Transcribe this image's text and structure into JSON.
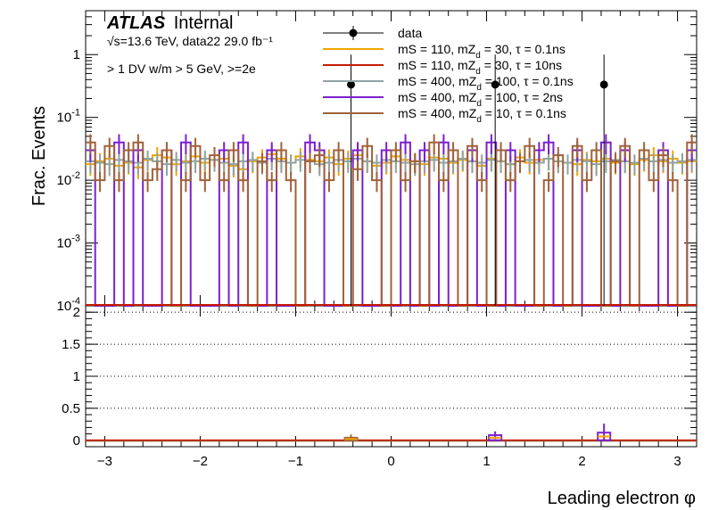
{
  "chart_data": [
    {
      "type": "step-histogram",
      "panel": "main",
      "title": "",
      "xlabel": "Leading electron φ",
      "ylabel": "Frac. Events",
      "ylog": true,
      "xlim": [
        -3.2,
        3.2
      ],
      "ylim": [
        0.0001,
        5
      ],
      "y_tick_values": [
        0.0001,
        0.001,
        0.01,
        0.1,
        1
      ],
      "y_tick_labels": [
        "10^-4",
        "10^-3",
        "10^-2",
        "10^-1",
        "1"
      ],
      "atlas_label": {
        "bold": "ATLAS",
        "suffix": "Internal"
      },
      "info_lines": [
        "√s=13.6 TeV, data22 29.0 fb⁻¹",
        "> 1 DV w/m > 5 GeV, >=2e"
      ],
      "legend_position": "top-right",
      "series": [
        {
          "name": "data",
          "color": "#000000",
          "style": "points",
          "points": [
            {
              "x": -0.42,
              "y": 0.333,
              "lo": 0.0001,
              "hi": 1.0
            },
            {
              "x": 1.09,
              "y": 0.333,
              "lo": 0.0001,
              "hi": 1.0
            },
            {
              "x": 2.23,
              "y": 0.333,
              "lo": 0.0001,
              "hi": 1.0
            }
          ]
        },
        {
          "name": "mS = 110, mZ_d = 30, τ = 0.1ns",
          "color": "#f0a500",
          "values": [
            0.018,
            0.02,
            0.022,
            0.017,
            0.019,
            0.016,
            0.021,
            0.025,
            0.023,
            0.018,
            0.02,
            0.024,
            0.019,
            0.021,
            0.022,
            0.017,
            0.015,
            0.02,
            0.023,
            0.026,
            0.022,
            0.019,
            0.024,
            0.021,
            0.02,
            0.023,
            0.018,
            0.022,
            0.025,
            0.02,
            0.017,
            0.019,
            0.024,
            0.021,
            0.02,
            0.018,
            0.023,
            0.022,
            0.019,
            0.021,
            0.02,
            0.017,
            0.022,
            0.02,
            0.018,
            0.023,
            0.019,
            0.021,
            0.022,
            0.02,
            0.019,
            0.018,
            0.021,
            0.02,
            0.022,
            0.019,
            0.02,
            0.018,
            0.021,
            0.025,
            0.02,
            0.022,
            0.019,
            0.02
          ]
        },
        {
          "name": "mS = 110, mZ_d = 30, τ = 10ns",
          "color": "#c41a00",
          "values": []
        },
        {
          "name": "mS = 400, mZ_d = 100, τ = 0.1ns",
          "color": "#8fa3a3",
          "values": [
            0.02,
            0.019,
            0.018,
            0.021,
            0.02,
            0.019,
            0.022,
            0.02,
            0.018,
            0.021,
            0.019,
            0.02,
            0.022,
            0.021,
            0.019,
            0.018,
            0.02,
            0.021,
            0.019,
            0.022,
            0.02,
            0.019,
            0.021,
            0.02,
            0.018,
            0.019,
            0.021,
            0.02,
            0.022,
            0.02,
            0.019,
            0.021,
            0.02,
            0.019,
            0.018,
            0.02,
            0.021,
            0.019,
            0.02,
            0.022,
            0.02,
            0.019,
            0.021,
            0.02,
            0.018,
            0.02,
            0.021,
            0.019,
            0.022,
            0.02,
            0.019,
            0.021,
            0.02,
            0.018,
            0.02,
            0.021,
            0.02,
            0.019,
            0.022,
            0.02,
            0.021,
            0.019,
            0.02,
            0.021
          ]
        },
        {
          "name": "mS = 400, mZ_d = 100, τ = 2ns",
          "color": "#7a20cc",
          "values": [
            0.03,
            0.0001,
            0.0001,
            0.04,
            0.0001,
            0.03,
            0.0001,
            0.0001,
            0.03,
            0.0001,
            0.04,
            0.0001,
            0.0001,
            0.0001,
            0.03,
            0.0001,
            0.04,
            0.0001,
            0.0001,
            0.03,
            0.0001,
            0.0001,
            0.0001,
            0.04,
            0.03,
            0.0001,
            0.0001,
            0.0001,
            0.03,
            0.0001,
            0.0001,
            0.03,
            0.0001,
            0.04,
            0.0001,
            0.03,
            0.0001,
            0.04,
            0.0001,
            0.0001,
            0.03,
            0.0001,
            0.04,
            0.0001,
            0.03,
            0.0001,
            0.0001,
            0.03,
            0.04,
            0.0001,
            0.0001,
            0.03,
            0.0001,
            0.0001,
            0.04,
            0.0001,
            0.03,
            0.0001,
            0.0001,
            0.0001,
            0.03,
            0.0001,
            0.0001,
            0.03
          ]
        },
        {
          "name": "mS = 400, mZ_d = 10, τ = 0.1ns",
          "color": "#a0623a",
          "values": [
            0.04,
            0.01,
            0.035,
            0.01,
            0.03,
            0.04,
            0.01,
            0.015,
            0.03,
            0.0001,
            0.01,
            0.035,
            0.01,
            0.025,
            0.01,
            0.03,
            0.01,
            0.0001,
            0.02,
            0.01,
            0.03,
            0.01,
            0.0001,
            0.02,
            0.025,
            0.01,
            0.03,
            0.0001,
            0.015,
            0.035,
            0.01,
            0.0001,
            0.03,
            0.01,
            0.02,
            0.0001,
            0.04,
            0.01,
            0.03,
            0.0001,
            0.035,
            0.01,
            0.0001,
            0.03,
            0.01,
            0.02,
            0.035,
            0.0001,
            0.01,
            0.025,
            0.0001,
            0.035,
            0.01,
            0.03,
            0.0001,
            0.02,
            0.035,
            0.0001,
            0.03,
            0.01,
            0.025,
            0.01,
            0.0001,
            0.04
          ]
        }
      ]
    },
    {
      "type": "ratio-histogram",
      "panel": "ratio",
      "xlabel": "Leading electron φ",
      "ylabel": "",
      "xlim": [
        -3.2,
        3.2
      ],
      "ylim": [
        -0.1,
        2.1
      ],
      "x_tick_labels": [
        "−3",
        "−2",
        "−1",
        "0",
        "1",
        "2",
        "3"
      ],
      "x_tick_values": [
        -3,
        -2,
        -1,
        0,
        1,
        2,
        3
      ],
      "y_tick_labels": [
        "0",
        "0.5",
        "1",
        "1.5",
        "2"
      ],
      "y_tick_values": [
        0,
        0.5,
        1,
        1.5,
        2
      ],
      "grid": "dotted horizontal",
      "markers": [
        {
          "x": -0.42,
          "y": 0.04,
          "err": 0.05,
          "color": "#a0623a"
        },
        {
          "x": 1.09,
          "y": 0.08,
          "err": 0.06,
          "color": "#7a20cc"
        },
        {
          "x": 2.23,
          "y": 0.12,
          "err": 0.14,
          "color": "#7a20cc"
        }
      ]
    }
  ]
}
